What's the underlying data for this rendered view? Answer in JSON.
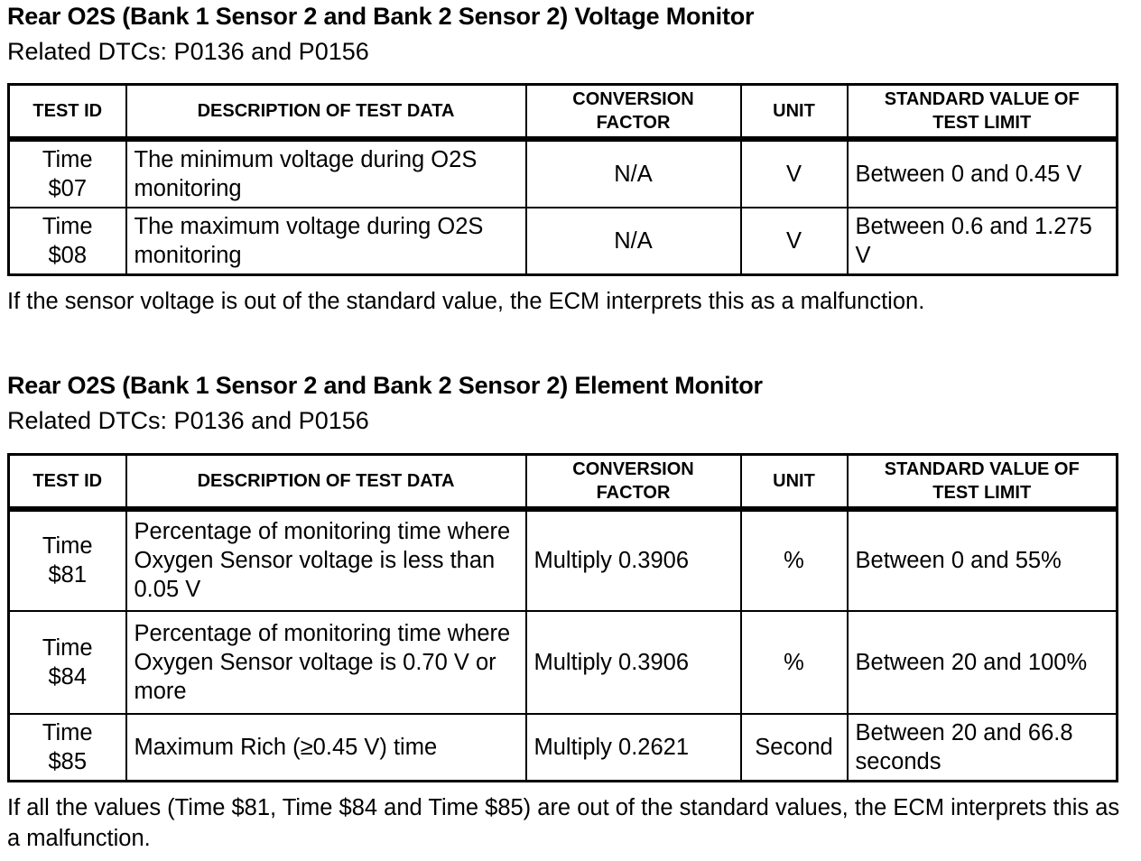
{
  "sections": [
    {
      "title": "Rear O2S (Bank 1 Sensor 2 and Bank 2 Sensor 2) Voltage Monitor",
      "related": "Related DTCs: P0136 and P0156",
      "headers": [
        "TEST ID",
        "DESCRIPTION OF TEST DATA",
        "CONVERSION FACTOR",
        "UNIT",
        "STANDARD VALUE OF TEST LIMIT"
      ],
      "rows": [
        [
          "Time $07",
          "The minimum voltage during O2S monitoring",
          "N/A",
          "V",
          "Between 0 and 0.45 V"
        ],
        [
          "Time $08",
          "The maximum voltage during O2S monitoring",
          "N/A",
          "V",
          "Between 0.6 and 1.275 V"
        ]
      ],
      "note": "If the sensor voltage is out of the standard value, the ECM interprets this as a malfunction."
    },
    {
      "title": "Rear O2S (Bank 1 Sensor 2 and Bank 2 Sensor 2) Element Monitor",
      "related": "Related DTCs: P0136 and P0156",
      "headers": [
        "TEST ID",
        "DESCRIPTION OF TEST DATA",
        "CONVERSION FACTOR",
        "UNIT",
        "STANDARD VALUE OF TEST LIMIT"
      ],
      "rows": [
        [
          "Time $81",
          "Percentage of monitoring time where Oxygen Sensor voltage is less than 0.05 V",
          "Multiply 0.3906",
          "%",
          "Between 0 and 55%"
        ],
        [
          "Time $84",
          "Percentage of monitoring time where Oxygen Sensor voltage is 0.70 V or more",
          "Multiply 0.3906",
          "%",
          "Between 20 and 100%"
        ],
        [
          "Time $85",
          "Maximum Rich (≥0.45 V) time",
          "Multiply 0.2621",
          "Second",
          "Between 20 and 66.8 seconds"
        ]
      ],
      "note": "If all the values (Time $81, Time $84 and Time $85) are out of the standard values, the ECM interprets this as a malfunction."
    }
  ]
}
